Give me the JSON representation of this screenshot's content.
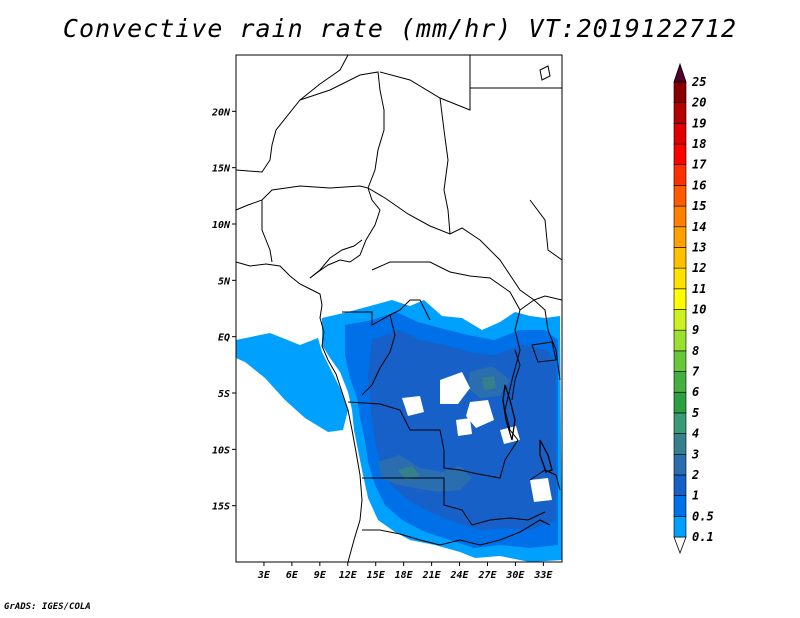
{
  "title": "Convective rain rate (mm/hr) VT:2019122712",
  "footer": "GrADS: IGES/COLA",
  "map": {
    "lon_range": [
      0,
      35
    ],
    "lat_range": [
      -20,
      25
    ],
    "lon_ticks": [
      "3E",
      "6E",
      "9E",
      "12E",
      "15E",
      "18E",
      "21E",
      "24E",
      "27E",
      "30E",
      "33E"
    ],
    "lon_tick_values": [
      3,
      6,
      9,
      12,
      15,
      18,
      21,
      24,
      27,
      30,
      33
    ],
    "lat_ticks": [
      "20N",
      "15N",
      "10N",
      "5N",
      "EQ",
      "5S",
      "10S",
      "15S"
    ],
    "lat_tick_values": [
      20,
      15,
      10,
      5,
      0,
      -5,
      -10,
      -15
    ]
  },
  "colorbar": {
    "labels": [
      "0.1",
      "0.5",
      "1",
      "2",
      "3",
      "4",
      "5",
      "6",
      "7",
      "8",
      "9",
      "10",
      "11",
      "12",
      "13",
      "14",
      "15",
      "16",
      "17",
      "18",
      "19",
      "20",
      "25"
    ],
    "colors": [
      "#00a0ff",
      "#0070e8",
      "#1660c8",
      "#2a6eb0",
      "#36808c",
      "#3a9a78",
      "#2ca040",
      "#44b040",
      "#66c838",
      "#99e030",
      "#ccf020",
      "#ffff00",
      "#ffe000",
      "#ffc000",
      "#ffa000",
      "#ff8000",
      "#ff5a00",
      "#ff3000",
      "#ff0000",
      "#e00000",
      "#b40000",
      "#8a0000",
      "#600000",
      "#500030"
    ],
    "colors_fill_note": ""
  }
}
